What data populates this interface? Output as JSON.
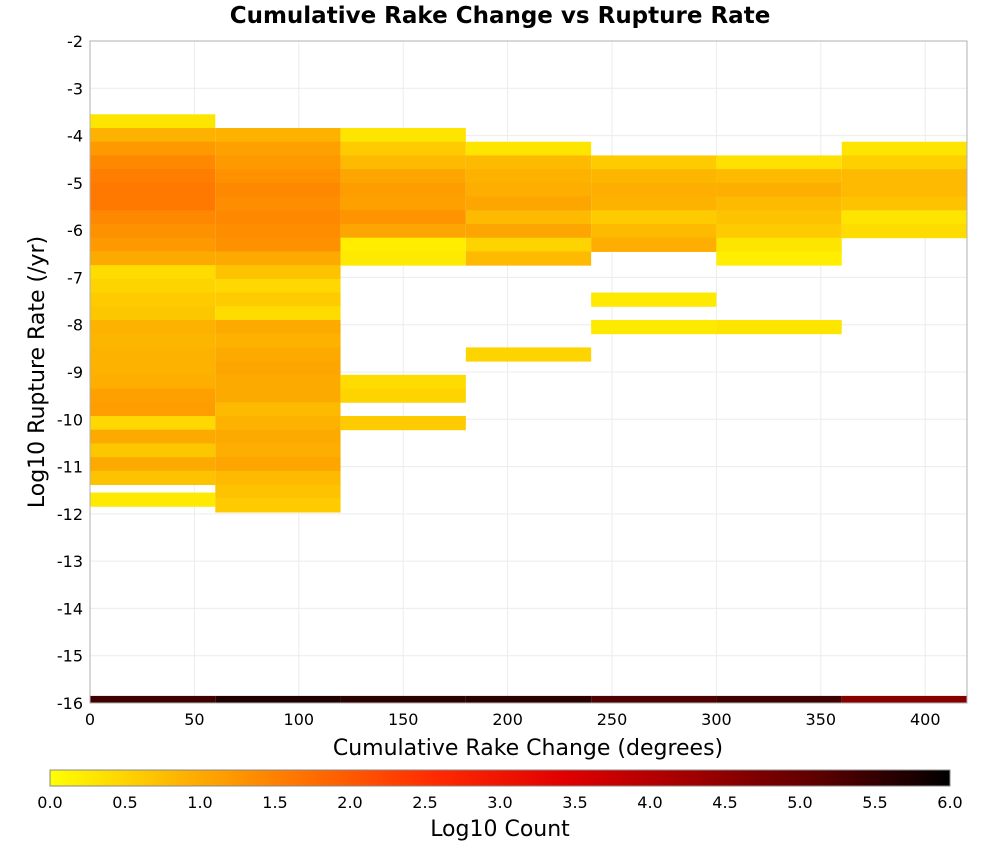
{
  "chart_data": {
    "type": "heatmap",
    "title": "Cumulative Rake Change vs Rupture Rate",
    "xlabel": "Cumulative Rake Change (degrees)",
    "ylabel": "Log10 Rupture Rate (/yr)",
    "xlim": [
      0,
      420
    ],
    "ylim": [
      -16,
      -2
    ],
    "xticks": [
      "0",
      "50",
      "100",
      "150",
      "200",
      "250",
      "300",
      "350",
      "400"
    ],
    "yticks": [
      "-2",
      "-3",
      "-4",
      "-5",
      "-6",
      "-7",
      "-8",
      "-9",
      "-10",
      "-11",
      "-12",
      "-13",
      "-14",
      "-15",
      "-16"
    ],
    "grid": true,
    "x_bins": [
      [
        0,
        60
      ],
      [
        60,
        120
      ],
      [
        120,
        180
      ],
      [
        180,
        240
      ],
      [
        240,
        300
      ],
      [
        300,
        360
      ],
      [
        360,
        420
      ]
    ],
    "y_bin_width": 0.29,
    "colorbar": {
      "label": "Log10 Count",
      "range": [
        0,
        6
      ],
      "ticks": [
        "0.0",
        "0.5",
        "1.0",
        "1.5",
        "2.0",
        "2.5",
        "3.0",
        "3.5",
        "4.0",
        "4.5",
        "5.0",
        "5.5",
        "6.0"
      ],
      "stops": [
        "#ffff00",
        "#fdb500",
        "#ff7000",
        "#ff2a00",
        "#e00000",
        "#a00000",
        "#5a0000",
        "#000000"
      ]
    },
    "columns": [
      {
        "x": [
          0,
          60
        ],
        "cells": [
          [
            -3.55,
            0.3
          ],
          [
            -3.84,
            0.9
          ],
          [
            -4.13,
            1.2
          ],
          [
            -4.42,
            1.4
          ],
          [
            -4.71,
            1.55
          ],
          [
            -5.0,
            1.6
          ],
          [
            -5.29,
            1.6
          ],
          [
            -5.58,
            1.4
          ],
          [
            -5.87,
            1.3
          ],
          [
            -6.16,
            1.2
          ],
          [
            -6.45,
            1.0
          ],
          [
            -6.74,
            0.4
          ],
          [
            -7.03,
            0.5
          ],
          [
            -7.32,
            0.6
          ],
          [
            -7.61,
            0.65
          ],
          [
            -7.9,
            0.9
          ],
          [
            -8.19,
            0.85
          ],
          [
            -8.48,
            0.9
          ],
          [
            -8.77,
            0.9
          ],
          [
            -9.06,
            0.95
          ],
          [
            -9.35,
            1.1
          ],
          [
            -9.64,
            1.15
          ],
          [
            -9.93,
            0.45
          ],
          [
            -10.22,
            1.0
          ],
          [
            -10.51,
            0.65
          ],
          [
            -10.8,
            1.0
          ],
          [
            -11.09,
            0.7
          ],
          [
            -11.55,
            0.25
          ]
        ]
      },
      {
        "x": [
          60,
          120
        ],
        "cells": [
          [
            -3.84,
            0.9
          ],
          [
            -4.13,
            1.1
          ],
          [
            -4.42,
            1.2
          ],
          [
            -4.71,
            1.3
          ],
          [
            -5.0,
            1.4
          ],
          [
            -5.29,
            1.35
          ],
          [
            -5.58,
            1.4
          ],
          [
            -5.87,
            1.35
          ],
          [
            -6.16,
            1.3
          ],
          [
            -6.45,
            1.0
          ],
          [
            -6.74,
            0.7
          ],
          [
            -7.03,
            0.45
          ],
          [
            -7.32,
            0.6
          ],
          [
            -7.61,
            0.4
          ],
          [
            -7.9,
            1.0
          ],
          [
            -8.19,
            0.9
          ],
          [
            -8.48,
            1.0
          ],
          [
            -8.77,
            1.05
          ],
          [
            -9.06,
            1.0
          ],
          [
            -9.35,
            1.0
          ],
          [
            -9.64,
            0.8
          ],
          [
            -9.93,
            0.9
          ],
          [
            -10.22,
            1.0
          ],
          [
            -10.51,
            0.95
          ],
          [
            -10.8,
            1.05
          ],
          [
            -11.09,
            0.8
          ],
          [
            -11.38,
            0.7
          ],
          [
            -11.67,
            0.6
          ]
        ]
      },
      {
        "x": [
          120,
          180
        ],
        "cells": [
          [
            -3.84,
            0.3
          ],
          [
            -4.13,
            0.6
          ],
          [
            -4.42,
            0.8
          ],
          [
            -4.71,
            1.05
          ],
          [
            -5.0,
            1.15
          ],
          [
            -5.29,
            1.1
          ],
          [
            -5.58,
            1.25
          ],
          [
            -5.87,
            1.05
          ],
          [
            -6.16,
            0.2
          ],
          [
            -6.45,
            0.25
          ],
          [
            -9.06,
            0.4
          ],
          [
            -9.35,
            0.5
          ],
          [
            -9.93,
            0.6
          ]
        ]
      },
      {
        "x": [
          180,
          240
        ],
        "cells": [
          [
            -4.13,
            0.3
          ],
          [
            -4.42,
            0.8
          ],
          [
            -4.71,
            0.9
          ],
          [
            -5.0,
            0.95
          ],
          [
            -5.29,
            1.05
          ],
          [
            -5.58,
            0.8
          ],
          [
            -5.87,
            1.05
          ],
          [
            -6.16,
            0.5
          ],
          [
            -6.45,
            0.8
          ],
          [
            -8.48,
            0.5
          ]
        ]
      },
      {
        "x": [
          240,
          300
        ],
        "cells": [
          [
            -4.42,
            0.6
          ],
          [
            -4.71,
            0.85
          ],
          [
            -5.0,
            0.95
          ],
          [
            -5.29,
            0.9
          ],
          [
            -5.58,
            0.6
          ],
          [
            -5.87,
            0.8
          ],
          [
            -6.16,
            0.95
          ],
          [
            -7.32,
            0.25
          ],
          [
            -7.9,
            0.25
          ]
        ]
      },
      {
        "x": [
          300,
          360
        ],
        "cells": [
          [
            -4.42,
            0.35
          ],
          [
            -4.71,
            0.8
          ],
          [
            -5.0,
            0.95
          ],
          [
            -5.29,
            0.8
          ],
          [
            -5.58,
            0.7
          ],
          [
            -5.87,
            0.6
          ],
          [
            -6.16,
            0.3
          ],
          [
            -6.45,
            0.2
          ],
          [
            -7.9,
            0.3
          ]
        ]
      },
      {
        "x": [
          360,
          420
        ],
        "cells": [
          [
            -4.13,
            0.3
          ],
          [
            -4.42,
            0.55
          ],
          [
            -4.71,
            0.8
          ],
          [
            -5.0,
            0.8
          ],
          [
            -5.29,
            0.7
          ],
          [
            -5.58,
            0.3
          ],
          [
            -5.87,
            0.4
          ]
        ]
      }
    ],
    "bottom_row": {
      "y": [
        -16,
        -15.85
      ],
      "cells": [
        {
          "x": [
            0,
            60
          ],
          "value": 5.4
        },
        {
          "x": [
            60,
            120
          ],
          "value": 5.7
        },
        {
          "x": [
            120,
            180
          ],
          "value": 5.6
        },
        {
          "x": [
            180,
            240
          ],
          "value": 5.6
        },
        {
          "x": [
            240,
            300
          ],
          "value": 5.25
        },
        {
          "x": [
            300,
            360
          ],
          "value": 5.4
        },
        {
          "x": [
            360,
            420
          ],
          "value": 4.6
        }
      ]
    }
  }
}
